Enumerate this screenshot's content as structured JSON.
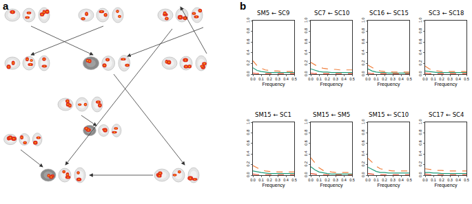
{
  "panel_labels": [
    "a",
    "b"
  ],
  "chart_data": [
    {
      "type": "line",
      "title": "SM5 ← SC9",
      "xlabel": "Frequency",
      "x": [
        0,
        0.05,
        0.1,
        0.15,
        0.2,
        0.25,
        0.3,
        0.35,
        0.4,
        0.45,
        0.5
      ],
      "xlim": [
        0,
        0.5
      ],
      "ylim": [
        0,
        1
      ],
      "xticks": [
        {
          "value": 0,
          "label": "0.0"
        },
        0.1,
        0.2,
        0.3,
        0.4,
        0.5
      ],
      "yticks": [
        {
          "value": 0,
          "label": "0.0"
        },
        0.2,
        0.4,
        0.6,
        0.8,
        {
          "value": 1,
          "label": "1.0"
        }
      ],
      "series": [
        {
          "color": "#f07f3c",
          "line_style": "dashed",
          "values": [
            0.25,
            0.16,
            0.11,
            0.08,
            0.07,
            0.06,
            0.06,
            0.05,
            0.05,
            0.05,
            0.05
          ]
        },
        {
          "color": "#1f9e7a",
          "line_style": "solid",
          "values": [
            0.12,
            0.07,
            0.05,
            0.04,
            0.03,
            0.03,
            0.03,
            0.03,
            0.03,
            0.03,
            0.03
          ]
        },
        {
          "color": "#e8482a",
          "line_style": "dashed",
          "values": [
            0.02,
            0.01,
            0.01,
            0.01,
            0.01,
            0.01,
            0.01,
            0.01,
            0.01,
            0.01,
            0.01
          ]
        }
      ]
    },
    {
      "type": "line",
      "title": "SC7 ← SC10",
      "xlabel": "Frequency",
      "x": [
        0,
        0.05,
        0.1,
        0.15,
        0.2,
        0.25,
        0.3,
        0.35,
        0.4,
        0.45,
        0.5
      ],
      "xlim": [
        0,
        0.5
      ],
      "ylim": [
        0,
        1
      ],
      "xticks": [
        {
          "value": 0,
          "label": "0.0"
        },
        0.1,
        0.2,
        0.3,
        0.4,
        0.5
      ],
      "yticks": [
        {
          "value": 0,
          "label": "0.0"
        },
        0.2,
        0.4,
        0.6,
        0.8,
        {
          "value": 1,
          "label": "1.0"
        }
      ],
      "series": [
        {
          "color": "#f07f3c",
          "line_style": "dashed",
          "values": [
            0.22,
            0.17,
            0.13,
            0.11,
            0.1,
            0.09,
            0.09,
            0.08,
            0.08,
            0.08,
            0.08
          ]
        },
        {
          "color": "#1f9e7a",
          "line_style": "solid",
          "values": [
            0.1,
            0.07,
            0.05,
            0.04,
            0.04,
            0.03,
            0.03,
            0.03,
            0.03,
            0.03,
            0.03
          ]
        },
        {
          "color": "#e8482a",
          "line_style": "dashed",
          "values": [
            0.02,
            0.01,
            0.01,
            0.01,
            0.01,
            0.01,
            0.01,
            0.01,
            0.01,
            0.01,
            0.01
          ]
        }
      ]
    },
    {
      "type": "line",
      "title": "SC16 ← SC15",
      "xlabel": "Frequency",
      "x": [
        0,
        0.05,
        0.1,
        0.15,
        0.2,
        0.25,
        0.3,
        0.35,
        0.4,
        0.45,
        0.5
      ],
      "xlim": [
        0,
        0.5
      ],
      "ylim": [
        0,
        1
      ],
      "xticks": [
        {
          "value": 0,
          "label": "0.0"
        },
        0.1,
        0.2,
        0.3,
        0.4,
        0.5
      ],
      "yticks": [
        {
          "value": 0,
          "label": "0.0"
        },
        0.2,
        0.4,
        0.6,
        0.8,
        {
          "value": 1,
          "label": "1.0"
        }
      ],
      "series": [
        {
          "color": "#f07f3c",
          "line_style": "dashed",
          "values": [
            0.17,
            0.12,
            0.08,
            0.06,
            0.05,
            0.05,
            0.04,
            0.04,
            0.04,
            0.04,
            0.04
          ]
        },
        {
          "color": "#1f9e7a",
          "line_style": "solid",
          "values": [
            0.1,
            0.06,
            0.04,
            0.03,
            0.03,
            0.02,
            0.02,
            0.02,
            0.02,
            0.02,
            0.02
          ]
        },
        {
          "color": "#e8482a",
          "line_style": "dashed",
          "values": [
            0.02,
            0.01,
            0.01,
            0.01,
            0.01,
            0.01,
            0.01,
            0.01,
            0.01,
            0.01,
            0.01
          ]
        }
      ]
    },
    {
      "type": "line",
      "title": "SC3 ← SC18",
      "xlabel": "Frequency",
      "x": [
        0,
        0.05,
        0.1,
        0.15,
        0.2,
        0.25,
        0.3,
        0.35,
        0.4,
        0.45,
        0.5
      ],
      "xlim": [
        0,
        0.5
      ],
      "ylim": [
        0,
        1
      ],
      "xticks": [
        {
          "value": 0,
          "label": "0.0"
        },
        0.1,
        0.2,
        0.3,
        0.4,
        0.5
      ],
      "yticks": [
        {
          "value": 0,
          "label": "0.0"
        },
        0.2,
        0.4,
        0.6,
        0.8,
        {
          "value": 1,
          "label": "1.0"
        }
      ],
      "series": [
        {
          "color": "#f07f3c",
          "line_style": "dashed",
          "values": [
            0.15,
            0.1,
            0.07,
            0.06,
            0.05,
            0.05,
            0.05,
            0.05,
            0.05,
            0.05,
            0.05
          ]
        },
        {
          "color": "#1f9e7a",
          "line_style": "solid",
          "values": [
            0.06,
            0.05,
            0.04,
            0.03,
            0.03,
            0.03,
            0.03,
            0.03,
            0.03,
            0.03,
            0.03
          ]
        },
        {
          "color": "#e8482a",
          "line_style": "dashed",
          "values": [
            0.02,
            0.01,
            0.01,
            0.01,
            0.01,
            0.01,
            0.01,
            0.01,
            0.01,
            0.01,
            0.01
          ]
        }
      ]
    },
    {
      "type": "line",
      "title": "SM15 ← SC1",
      "xlabel": "Frequency",
      "x": [
        0,
        0.05,
        0.1,
        0.15,
        0.2,
        0.25,
        0.3,
        0.35,
        0.4,
        0.45,
        0.5
      ],
      "xlim": [
        0,
        0.5
      ],
      "ylim": [
        0,
        1
      ],
      "xticks": [
        {
          "value": 0,
          "label": "0.0"
        },
        0.1,
        0.2,
        0.3,
        0.4,
        0.5
      ],
      "yticks": [
        {
          "value": 0,
          "label": "0.0"
        },
        0.2,
        0.4,
        0.6,
        0.8,
        {
          "value": 1,
          "label": "1.0"
        }
      ],
      "series": [
        {
          "color": "#f07f3c",
          "line_style": "dashed",
          "values": [
            0.18,
            0.14,
            0.1,
            0.08,
            0.07,
            0.07,
            0.06,
            0.06,
            0.06,
            0.06,
            0.06
          ]
        },
        {
          "color": "#1f9e7a",
          "line_style": "solid",
          "values": [
            0.08,
            0.06,
            0.05,
            0.04,
            0.03,
            0.03,
            0.03,
            0.03,
            0.03,
            0.03,
            0.03
          ]
        },
        {
          "color": "#e8482a",
          "line_style": "dashed",
          "values": [
            0.02,
            0.01,
            0.01,
            0.01,
            0.01,
            0.01,
            0.01,
            0.01,
            0.01,
            0.01,
            0.01
          ]
        }
      ]
    },
    {
      "type": "line",
      "title": "SM15 ← SM5",
      "xlabel": "Frequency",
      "x": [
        0,
        0.05,
        0.1,
        0.15,
        0.2,
        0.25,
        0.3,
        0.35,
        0.4,
        0.45,
        0.5
      ],
      "xlim": [
        0,
        0.5
      ],
      "ylim": [
        0,
        1
      ],
      "xticks": [
        {
          "value": 0,
          "label": "0.0"
        },
        0.1,
        0.2,
        0.3,
        0.4,
        0.5
      ],
      "yticks": [
        {
          "value": 0,
          "label": "0.0"
        },
        0.2,
        0.4,
        0.6,
        0.8,
        {
          "value": 1,
          "label": "1.0"
        }
      ],
      "series": [
        {
          "color": "#f07f3c",
          "line_style": "dashed",
          "values": [
            0.33,
            0.24,
            0.14,
            0.09,
            0.07,
            0.06,
            0.05,
            0.05,
            0.05,
            0.05,
            0.05
          ]
        },
        {
          "color": "#1f9e7a",
          "line_style": "solid",
          "values": [
            0.16,
            0.1,
            0.06,
            0.04,
            0.03,
            0.02,
            0.02,
            0.02,
            0.02,
            0.02,
            0.02
          ]
        },
        {
          "color": "#e8482a",
          "line_style": "dashed",
          "values": [
            0.03,
            0.02,
            0.01,
            0.01,
            0.01,
            0.01,
            0.01,
            0.01,
            0.01,
            0.01,
            0.01
          ]
        }
      ]
    },
    {
      "type": "line",
      "title": "SM15 ← SC10",
      "xlabel": "Frequency",
      "x": [
        0,
        0.05,
        0.1,
        0.15,
        0.2,
        0.25,
        0.3,
        0.35,
        0.4,
        0.45,
        0.5
      ],
      "xlim": [
        0,
        0.5
      ],
      "ylim": [
        0,
        1
      ],
      "xticks": [
        {
          "value": 0,
          "label": "0.0"
        },
        0.1,
        0.2,
        0.3,
        0.4,
        0.5
      ],
      "yticks": [
        {
          "value": 0,
          "label": "0.0"
        },
        0.2,
        0.4,
        0.6,
        0.8,
        {
          "value": 1,
          "label": "1.0"
        }
      ],
      "series": [
        {
          "color": "#f07f3c",
          "line_style": "dashed",
          "values": [
            0.32,
            0.25,
            0.17,
            0.12,
            0.1,
            0.09,
            0.08,
            0.08,
            0.08,
            0.08,
            0.08
          ]
        },
        {
          "color": "#1f9e7a",
          "line_style": "solid",
          "values": [
            0.15,
            0.11,
            0.07,
            0.05,
            0.05,
            0.04,
            0.04,
            0.04,
            0.04,
            0.04,
            0.04
          ]
        },
        {
          "color": "#e8482a",
          "line_style": "dashed",
          "values": [
            0.03,
            0.02,
            0.01,
            0.01,
            0.01,
            0.01,
            0.01,
            0.01,
            0.01,
            0.01,
            0.01
          ]
        }
      ]
    },
    {
      "type": "line",
      "title": "SC17 ← SC4",
      "xlabel": "Frequency",
      "x": [
        0,
        0.05,
        0.1,
        0.15,
        0.2,
        0.25,
        0.3,
        0.35,
        0.4,
        0.45,
        0.5
      ],
      "xlim": [
        0,
        0.5
      ],
      "ylim": [
        0,
        1
      ],
      "xticks": [
        {
          "value": 0,
          "label": "0.0"
        },
        0.1,
        0.2,
        0.3,
        0.4,
        0.5
      ],
      "yticks": [
        {
          "value": 0,
          "label": "0.0"
        },
        0.2,
        0.4,
        0.6,
        0.8,
        {
          "value": 1,
          "label": "1.0"
        }
      ],
      "series": [
        {
          "color": "#f07f3c",
          "line_style": "dashed",
          "values": [
            0.12,
            0.11,
            0.1,
            0.09,
            0.09,
            0.08,
            0.08,
            0.08,
            0.08,
            0.08,
            0.08
          ]
        },
        {
          "color": "#1f9e7a",
          "line_style": "solid",
          "values": [
            0.05,
            0.05,
            0.04,
            0.04,
            0.03,
            0.03,
            0.03,
            0.03,
            0.03,
            0.03,
            0.03
          ]
        },
        {
          "color": "#e8482a",
          "line_style": "dashed",
          "values": [
            0.02,
            0.01,
            0.01,
            0.01,
            0.01,
            0.01,
            0.01,
            0.01,
            0.01,
            0.01,
            0.01
          ]
        }
      ]
    }
  ]
}
